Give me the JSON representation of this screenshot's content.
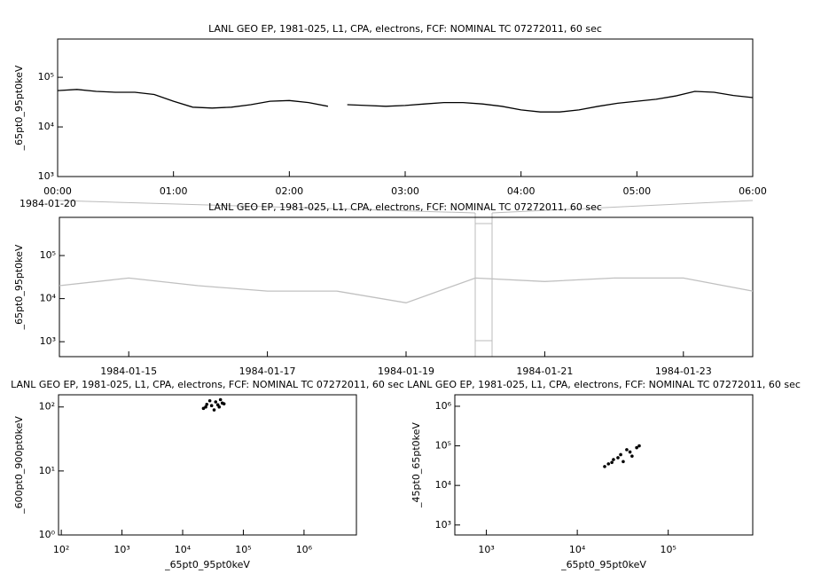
{
  "chart_data": [
    {
      "type": "line",
      "title": "LANL GEO EP, 1981-025, L1, CPA, electrons, FCF: NOMINAL TC 07272011, 60 sec",
      "ylabel": "_65pt0_95pt0keV",
      "date": "1984-01-20",
      "xscale": "time",
      "yscale": "log",
      "color": "#000000",
      "x": [
        "00:00",
        "00:10",
        "00:20",
        "00:30",
        "00:40",
        "00:50",
        "01:00",
        "01:10",
        "01:20",
        "01:30",
        "01:40",
        "01:50",
        "02:00",
        "02:10",
        "02:20",
        "02:25",
        "02:30",
        "02:40",
        "02:50",
        "03:00",
        "03:10",
        "03:20",
        "03:30",
        "03:40",
        "03:50",
        "04:00",
        "04:10",
        "04:20",
        "04:30",
        "04:40",
        "04:50",
        "05:00",
        "05:10",
        "05:20",
        "05:30",
        "05:40",
        "05:50",
        "06:00"
      ],
      "values": [
        54000,
        57000,
        52000,
        50000,
        50000,
        45000,
        33000,
        25000,
        24000,
        25000,
        28000,
        33000,
        34000,
        31000,
        26000,
        null,
        28000,
        27000,
        26000,
        27000,
        29000,
        31000,
        31000,
        29000,
        26000,
        22000,
        20000,
        20000,
        22000,
        26000,
        30000,
        33000,
        36000,
        42000,
        52000,
        50000,
        43000,
        39000
      ],
      "xlim": [
        "00:00",
        "06:00"
      ],
      "xticks": [
        "00:00",
        "01:00",
        "02:00",
        "03:00",
        "04:00",
        "05:00",
        "06:00"
      ],
      "ylim": [
        1000,
        590000
      ],
      "yticks": [
        {
          "value": 1000,
          "label": "10³"
        },
        {
          "value": 10000,
          "label": "10⁴"
        },
        {
          "value": 100000,
          "label": "10⁵"
        }
      ]
    },
    {
      "type": "line",
      "title": "LANL GEO EP, 1981-025, L1, CPA, electrons, FCF: NOMINAL TC 07272011, 60 sec",
      "ylabel": "_65pt0_95pt0keV",
      "xscale": "date",
      "yscale": "log",
      "color": "#c0c0c0",
      "x": [
        "1984-01-14",
        "1984-01-15",
        "1984-01-16",
        "1984-01-17",
        "1984-01-18",
        "1984-01-19",
        "1984-01-20",
        "1984-01-21",
        "1984-01-22",
        "1984-01-23",
        "1984-01-24"
      ],
      "values": [
        20000,
        30000,
        20000,
        15000,
        15000,
        8000,
        30000,
        25000,
        30000,
        30000,
        15000
      ],
      "xlim": [
        "1984-01-14",
        "1984-01-24"
      ],
      "xticks": [
        "1984-01-15",
        "1984-01-17",
        "1984-01-19",
        "1984-01-21",
        "1984-01-23"
      ],
      "ylim": [
        450,
        770000
      ],
      "yticks": [
        {
          "value": 1000,
          "label": "10³"
        },
        {
          "value": 10000,
          "label": "10⁴"
        },
        {
          "value": 100000,
          "label": "10⁵"
        }
      ]
    },
    {
      "type": "scatter",
      "title": "LANL GEO EP, 1981-025, L1, CPA, electrons, FCF: NOMINAL TC 07272011, 60 sec",
      "ylabel": "_600pt0_900pt0keV",
      "xlabel": "_65pt0_95pt0keV",
      "xscale": "log",
      "yscale": "log",
      "color": "#000000",
      "x": [
        22000,
        25000,
        30000,
        35000,
        40000,
        45000,
        28000,
        33000,
        38000,
        24000,
        42000,
        48000
      ],
      "values": [
        95,
        110,
        105,
        120,
        100,
        115,
        125,
        90,
        108,
        100,
        130,
        112
      ],
      "xlim": [
        90,
        7300000
      ],
      "xticks": [
        {
          "value": 100,
          "label": "10²"
        },
        {
          "value": 1000,
          "label": "10³"
        },
        {
          "value": 10000,
          "label": "10⁴"
        },
        {
          "value": 100000,
          "label": "10⁵"
        },
        {
          "value": 1000000,
          "label": "10⁶"
        }
      ],
      "ylim": [
        1,
        155
      ],
      "yticks": [
        {
          "value": 1,
          "label": "10⁰"
        },
        {
          "value": 10,
          "label": "10¹"
        },
        {
          "value": 100,
          "label": "10²"
        }
      ]
    },
    {
      "type": "scatter",
      "title": "LANL GEO EP, 1981-025, L1, CPA, electrons, FCF: NOMINAL TC 07272011, 60 sec",
      "ylabel": "_45pt0_65pt0keV",
      "xlabel": "_65pt0_95pt0keV",
      "xscale": "log",
      "yscale": "log",
      "color": "#000000",
      "x": [
        20000,
        25000,
        35000,
        48000,
        45000,
        30000,
        22000,
        28000,
        40000,
        32000,
        24000,
        38000
      ],
      "values": [
        30000,
        45000,
        80000,
        100000,
        90000,
        60000,
        35000,
        50000,
        55000,
        40000,
        38000,
        70000
      ],
      "xlim": [
        450,
        850000
      ],
      "xticks": [
        {
          "value": 1000,
          "label": "10³"
        },
        {
          "value": 10000,
          "label": "10⁴"
        },
        {
          "value": 100000,
          "label": "10⁵"
        }
      ],
      "ylim": [
        560,
        1950000
      ],
      "yticks": [
        {
          "value": 1000,
          "label": "10³"
        },
        {
          "value": 10000,
          "label": "10⁴"
        },
        {
          "value": 100000,
          "label": "10⁵"
        },
        {
          "value": 1000000,
          "label": "10⁶"
        }
      ]
    }
  ]
}
